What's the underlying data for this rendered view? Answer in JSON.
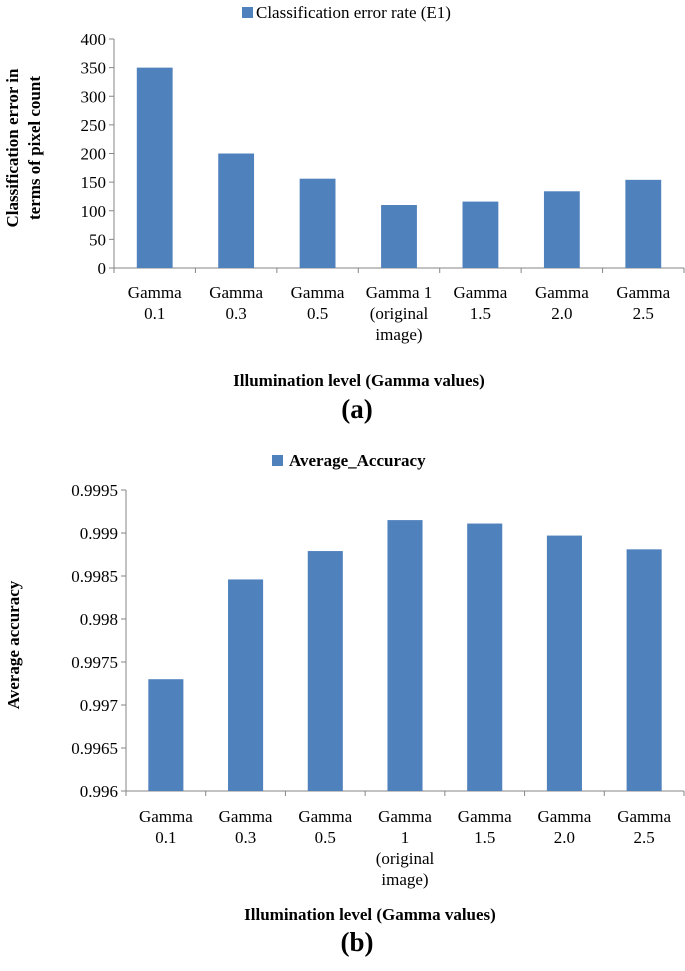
{
  "chart_data": [
    {
      "type": "bar",
      "panel_label": "(a)",
      "legend": "Classification error rate (E1)",
      "legend_position": "top",
      "ylabel_lines": [
        "Classification error in",
        "terms of pixel count"
      ],
      "xlabel": "Illumination level (Gamma values)",
      "ylim": [
        0,
        400
      ],
      "yticks": [
        "0",
        "50",
        "100",
        "150",
        "200",
        "250",
        "300",
        "350",
        "400"
      ],
      "grid": false,
      "categories": [
        [
          "Gamma",
          "0.1"
        ],
        [
          "Gamma",
          "0.3"
        ],
        [
          "Gamma",
          "0.5"
        ],
        [
          "Gamma 1",
          "(original",
          "image)"
        ],
        [
          "Gamma",
          "1.5"
        ],
        [
          "Gamma",
          "2.0"
        ],
        [
          "Gamma",
          "2.5"
        ]
      ],
      "series": [
        {
          "name": "Classification error rate (E1)",
          "values": [
            350,
            200,
            156,
            110,
            116,
            134,
            154
          ]
        }
      ],
      "color": "#4f81bd"
    },
    {
      "type": "bar",
      "panel_label": "(b)",
      "legend": "Average_Accuracy",
      "legend_position": "top",
      "ylabel_lines": [
        "Average accuracy"
      ],
      "xlabel": "Illumination level (Gamma values)",
      "ylim": [
        0.996,
        0.9995
      ],
      "yticks": [
        "0.996",
        "0.9965",
        "0.997",
        "0.9975",
        "0.998",
        "0.9985",
        "0.999",
        "0.9995"
      ],
      "grid": false,
      "categories": [
        [
          "Gamma",
          "0.1"
        ],
        [
          "Gamma",
          "0.3"
        ],
        [
          "Gamma",
          "0.5"
        ],
        [
          "Gamma",
          "1",
          "(original",
          "image)"
        ],
        [
          "Gamma",
          "1.5"
        ],
        [
          "Gamma",
          "2.0"
        ],
        [
          "Gamma",
          "2.5"
        ]
      ],
      "series": [
        {
          "name": "Average_Accuracy",
          "values": [
            0.9973,
            0.99846,
            0.99879,
            0.99915,
            0.99911,
            0.99897,
            0.99881
          ]
        }
      ],
      "color": "#4f81bd"
    }
  ]
}
